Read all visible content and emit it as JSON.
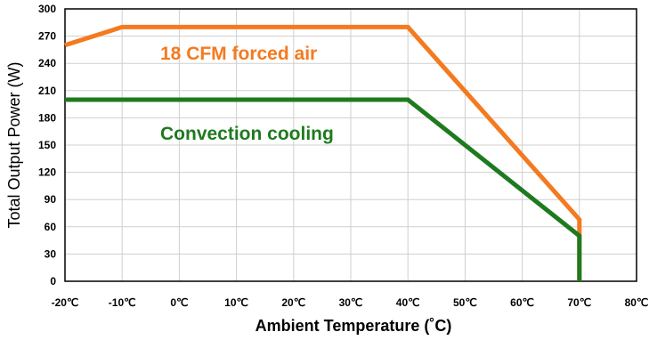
{
  "chart_data": {
    "type": "line",
    "xlabel": "Ambient Temperature (˚C)",
    "ylabel": "Total Output Power (W)",
    "xlim": [
      -20,
      80
    ],
    "ylim": [
      0,
      300
    ],
    "x_ticks": [
      -20,
      -10,
      0,
      10,
      20,
      30,
      40,
      50,
      60,
      70,
      80
    ],
    "x_tick_labels": [
      "-20℃",
      "-10℃",
      "0℃",
      "10℃",
      "20℃",
      "30℃",
      "40℃",
      "50℃",
      "60℃",
      "70℃",
      "80℃"
    ],
    "y_ticks": [
      0,
      30,
      60,
      90,
      120,
      150,
      180,
      210,
      240,
      270,
      300
    ],
    "y_tick_labels": [
      "0",
      "30",
      "60",
      "90",
      "120",
      "150",
      "180",
      "210",
      "240",
      "270",
      "300"
    ],
    "grid": true,
    "series": [
      {
        "name": "18 CFM forced air",
        "color": "#f47a20",
        "points": [
          [
            -20,
            260
          ],
          [
            -10,
            280
          ],
          [
            40,
            280
          ],
          [
            70,
            68
          ],
          [
            70,
            0
          ]
        ]
      },
      {
        "name": "Convection cooling",
        "color": "#1f7a1f",
        "points": [
          [
            -20,
            200
          ],
          [
            40,
            200
          ],
          [
            70,
            50
          ],
          [
            70,
            0
          ]
        ]
      }
    ],
    "annotations": [
      {
        "text": "18 CFM forced air",
        "color": "#f47a20",
        "series": 0
      },
      {
        "text": "Convection cooling",
        "color": "#1f7a1f",
        "series": 1
      }
    ]
  }
}
